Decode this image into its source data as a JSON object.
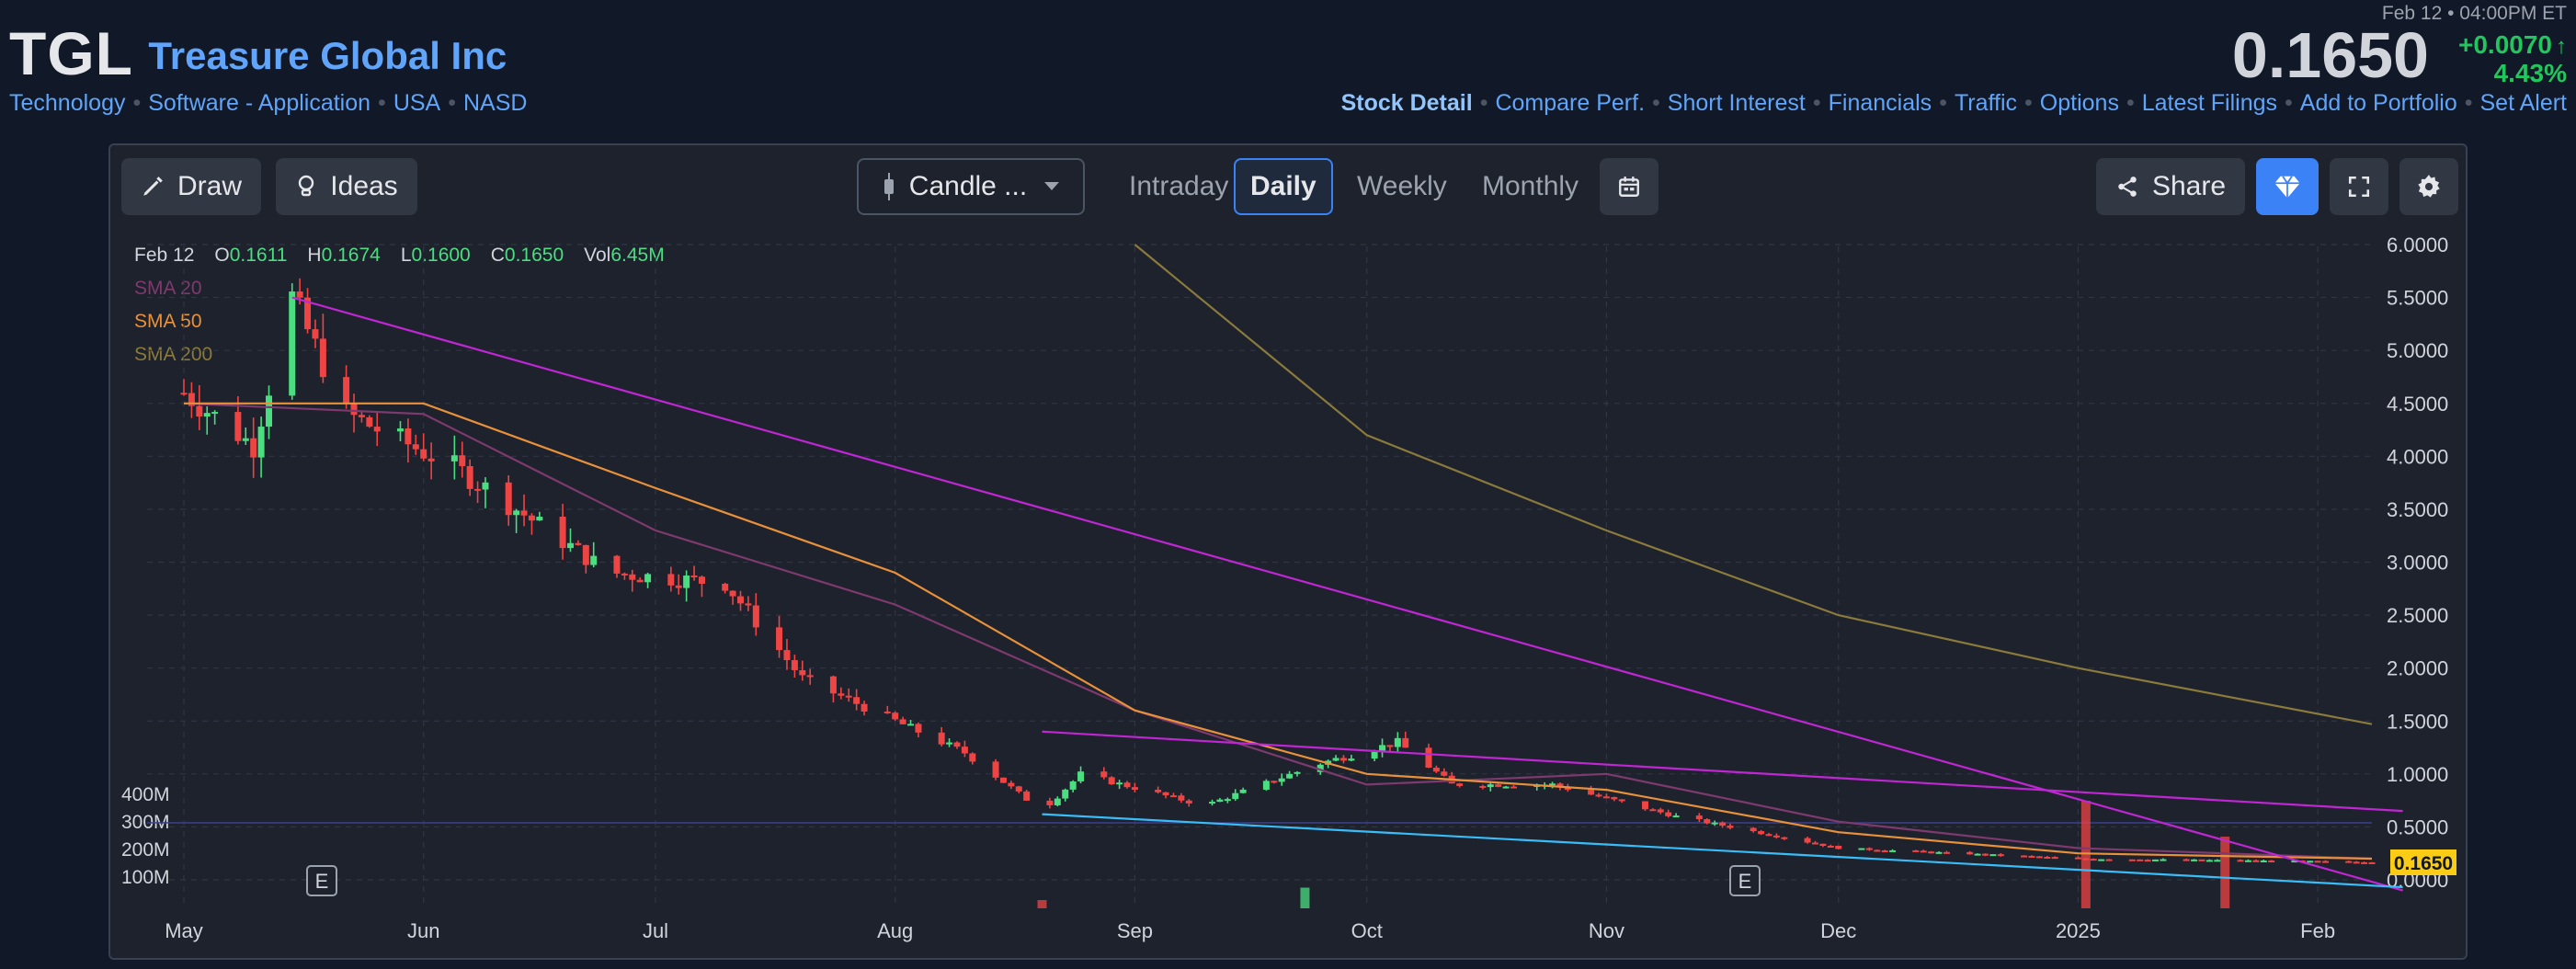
{
  "header": {
    "ticker": "TGL",
    "company": "Treasure Global Inc",
    "tags": [
      "Technology",
      "Software - Application",
      "USA",
      "NASD"
    ],
    "quote_time": "Feb 12 • 04:00PM ET",
    "price": "0.1650",
    "change_abs": "+0.0070",
    "change_pct": "4.43",
    "change_arrow": "↑",
    "change_pct_unit": "%",
    "nav": [
      "Stock Detail",
      "Compare Perf.",
      "Short Interest",
      "Financials",
      "Traffic",
      "Options",
      "Latest Filings",
      "Add to Portfolio",
      "Set Alert"
    ],
    "nav_active": "Stock Detail"
  },
  "toolbar": {
    "draw_label": "Draw",
    "ideas_label": "Ideas",
    "chart_type_label": "Candle ...",
    "intervals": [
      "Intraday",
      "Daily",
      "Weekly",
      "Monthly"
    ],
    "active_interval": "Daily",
    "share_label": "Share"
  },
  "legend": {
    "date": "Feb 12",
    "o_label": "O",
    "o_value": "0.1611",
    "h_label": "H",
    "h_value": "0.1674",
    "l_label": "L",
    "l_value": "0.1600",
    "c_label": "C",
    "c_value": "0.1650",
    "vol_label": "Vol",
    "vol_value": "6.45M",
    "sma": [
      {
        "name": "SMA 20",
        "color": "#7e3a6e"
      },
      {
        "name": "SMA 50",
        "color": "#e8913a"
      },
      {
        "name": "SMA 200",
        "color": "#8a7a3c"
      }
    ]
  },
  "colors": {
    "up": "#4ade80",
    "down": "#ef4444",
    "trendline": "#c026d3",
    "support": "#38bdf8",
    "accent": "#3b82f6",
    "price_badge": "#facc15"
  },
  "chart_data": {
    "type": "candlestick",
    "title": "",
    "xlabel": "",
    "ylabel": "",
    "ylim": [
      0,
      6
    ],
    "y_ticks": [
      "6.0000",
      "5.5000",
      "5.0000",
      "4.5000",
      "4.0000",
      "3.5000",
      "3.0000",
      "2.5000",
      "2.0000",
      "1.5000",
      "1.0000",
      "0.5000",
      "0.0000"
    ],
    "volume_ticks": [
      "400M",
      "300M",
      "200M",
      "100M"
    ],
    "x_ticks": [
      "May",
      "Jun",
      "Jul",
      "Aug",
      "Sep",
      "Oct",
      "Nov",
      "Dec",
      "2025",
      "Feb"
    ],
    "last_price_label": "0.1650",
    "earnings_marker": "E",
    "approx_close_path": [
      {
        "date": "May 1",
        "close": 4.6
      },
      {
        "date": "May 10",
        "close": 4.1
      },
      {
        "date": "May 15",
        "close": 5.5
      },
      {
        "date": "May 22",
        "close": 4.4
      },
      {
        "date": "Jun 5",
        "close": 3.9
      },
      {
        "date": "Jun 25",
        "close": 2.9
      },
      {
        "date": "Jul 10",
        "close": 2.8
      },
      {
        "date": "Jul 20",
        "close": 1.9
      },
      {
        "date": "Aug 10",
        "close": 1.2
      },
      {
        "date": "Aug 20",
        "close": 0.65
      },
      {
        "date": "Aug 25",
        "close": 1.0
      },
      {
        "date": "Sep 10",
        "close": 0.7
      },
      {
        "date": "Sep 25",
        "close": 1.1
      },
      {
        "date": "Oct 5",
        "close": 1.3
      },
      {
        "date": "Oct 12",
        "close": 0.9
      },
      {
        "date": "Oct 25",
        "close": 0.9
      },
      {
        "date": "Nov 10",
        "close": 0.6
      },
      {
        "date": "Dec 1",
        "close": 0.3
      },
      {
        "date": "Jan 1",
        "close": 0.2
      },
      {
        "date": "Feb 12",
        "close": 0.165
      }
    ],
    "series": [
      {
        "name": "SMA 20",
        "values": [
          4.5,
          4.4,
          3.3,
          2.6,
          1.6,
          0.9,
          1.0,
          0.55,
          0.3,
          0.2
        ]
      },
      {
        "name": "SMA 50",
        "values": [
          4.5,
          4.5,
          3.7,
          2.9,
          1.6,
          1.0,
          0.85,
          0.45,
          0.25,
          0.2
        ]
      },
      {
        "name": "SMA 200",
        "values": [
          null,
          null,
          null,
          null,
          6.0,
          4.2,
          3.3,
          2.5,
          2.0,
          1.47
        ]
      }
    ],
    "volume_spikes": [
      {
        "date": "Aug 20",
        "volume_m": 30
      },
      {
        "date": "Sep 23",
        "volume_m": 75
      },
      {
        "date": "Jan 2",
        "volume_m": 390
      },
      {
        "date": "Jan 20",
        "volume_m": 260
      }
    ],
    "trendlines": [
      {
        "from": {
          "date": "May 15",
          "price": 5.5
        },
        "to": {
          "date": "Feb 12",
          "price": -0.1
        }
      },
      {
        "from": {
          "date": "Aug 20",
          "price": 1.4
        },
        "to": {
          "date": "Feb 12",
          "price": 0.65
        }
      },
      {
        "from": {
          "date": "Aug 20",
          "price": 0.62
        },
        "to": {
          "date": "Feb 12",
          "price": -0.07
        }
      }
    ]
  }
}
